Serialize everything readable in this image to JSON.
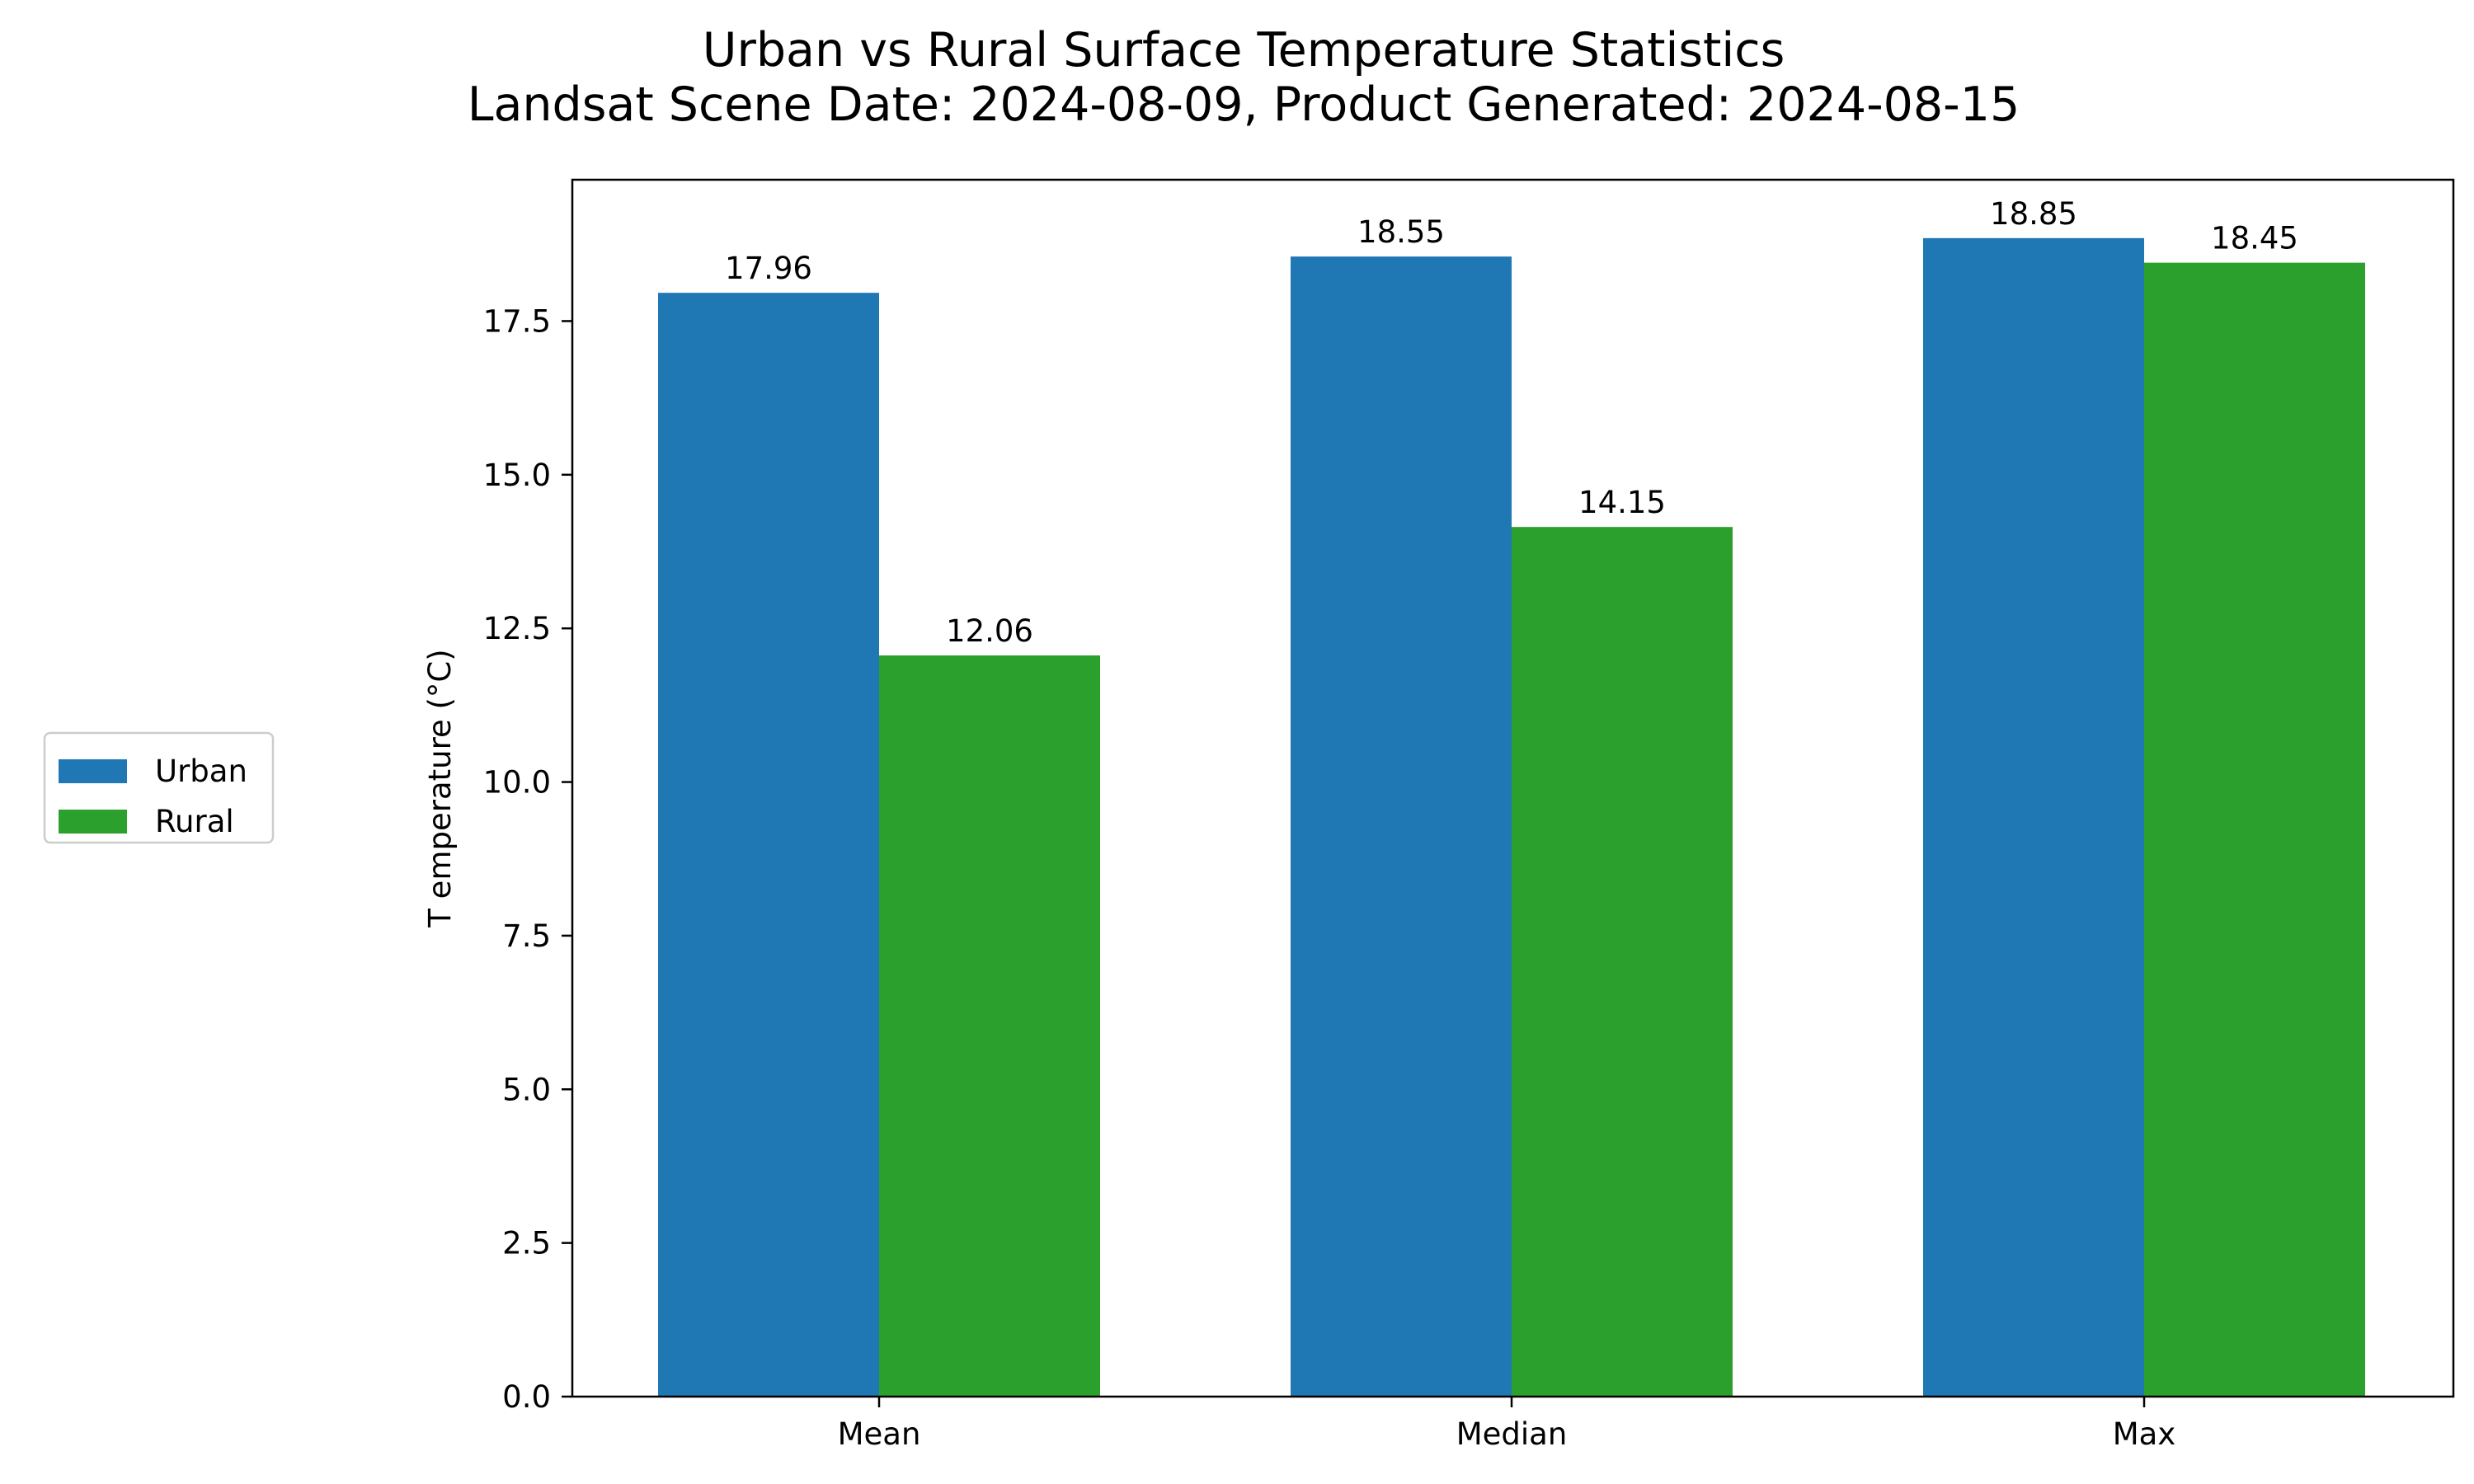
{
  "chart_data": {
    "type": "bar",
    "title": "Urban vs Rural Surface Temperature Statistics",
    "subtitle": "Landsat Scene Date: 2024-08-09, Product Generated: 2024-08-15",
    "xlabel": "",
    "ylabel": "T emperature (°C)",
    "categories": [
      "Mean",
      "Median",
      "Max"
    ],
    "series": [
      {
        "name": "Urban",
        "color": "#1f77b4",
        "values": [
          17.96,
          18.55,
          18.85
        ],
        "labels": [
          "17.96",
          "18.55",
          "18.85"
        ]
      },
      {
        "name": "Rural",
        "color": "#2ca02c",
        "values": [
          12.06,
          14.15,
          18.45
        ],
        "labels": [
          "12.06",
          "14.15",
          "18.45"
        ]
      }
    ],
    "ylim": [
      0,
      19.8
    ],
    "yticks": [
      0.0,
      2.5,
      5.0,
      7.5,
      10.0,
      12.5,
      15.0,
      17.5
    ],
    "ytick_labels": [
      "0.0",
      "2.5",
      "5.0",
      "7.5",
      "10.0",
      "12.5",
      "15.0",
      "17.5"
    ],
    "grid": false,
    "legend_position": "outside-left"
  }
}
